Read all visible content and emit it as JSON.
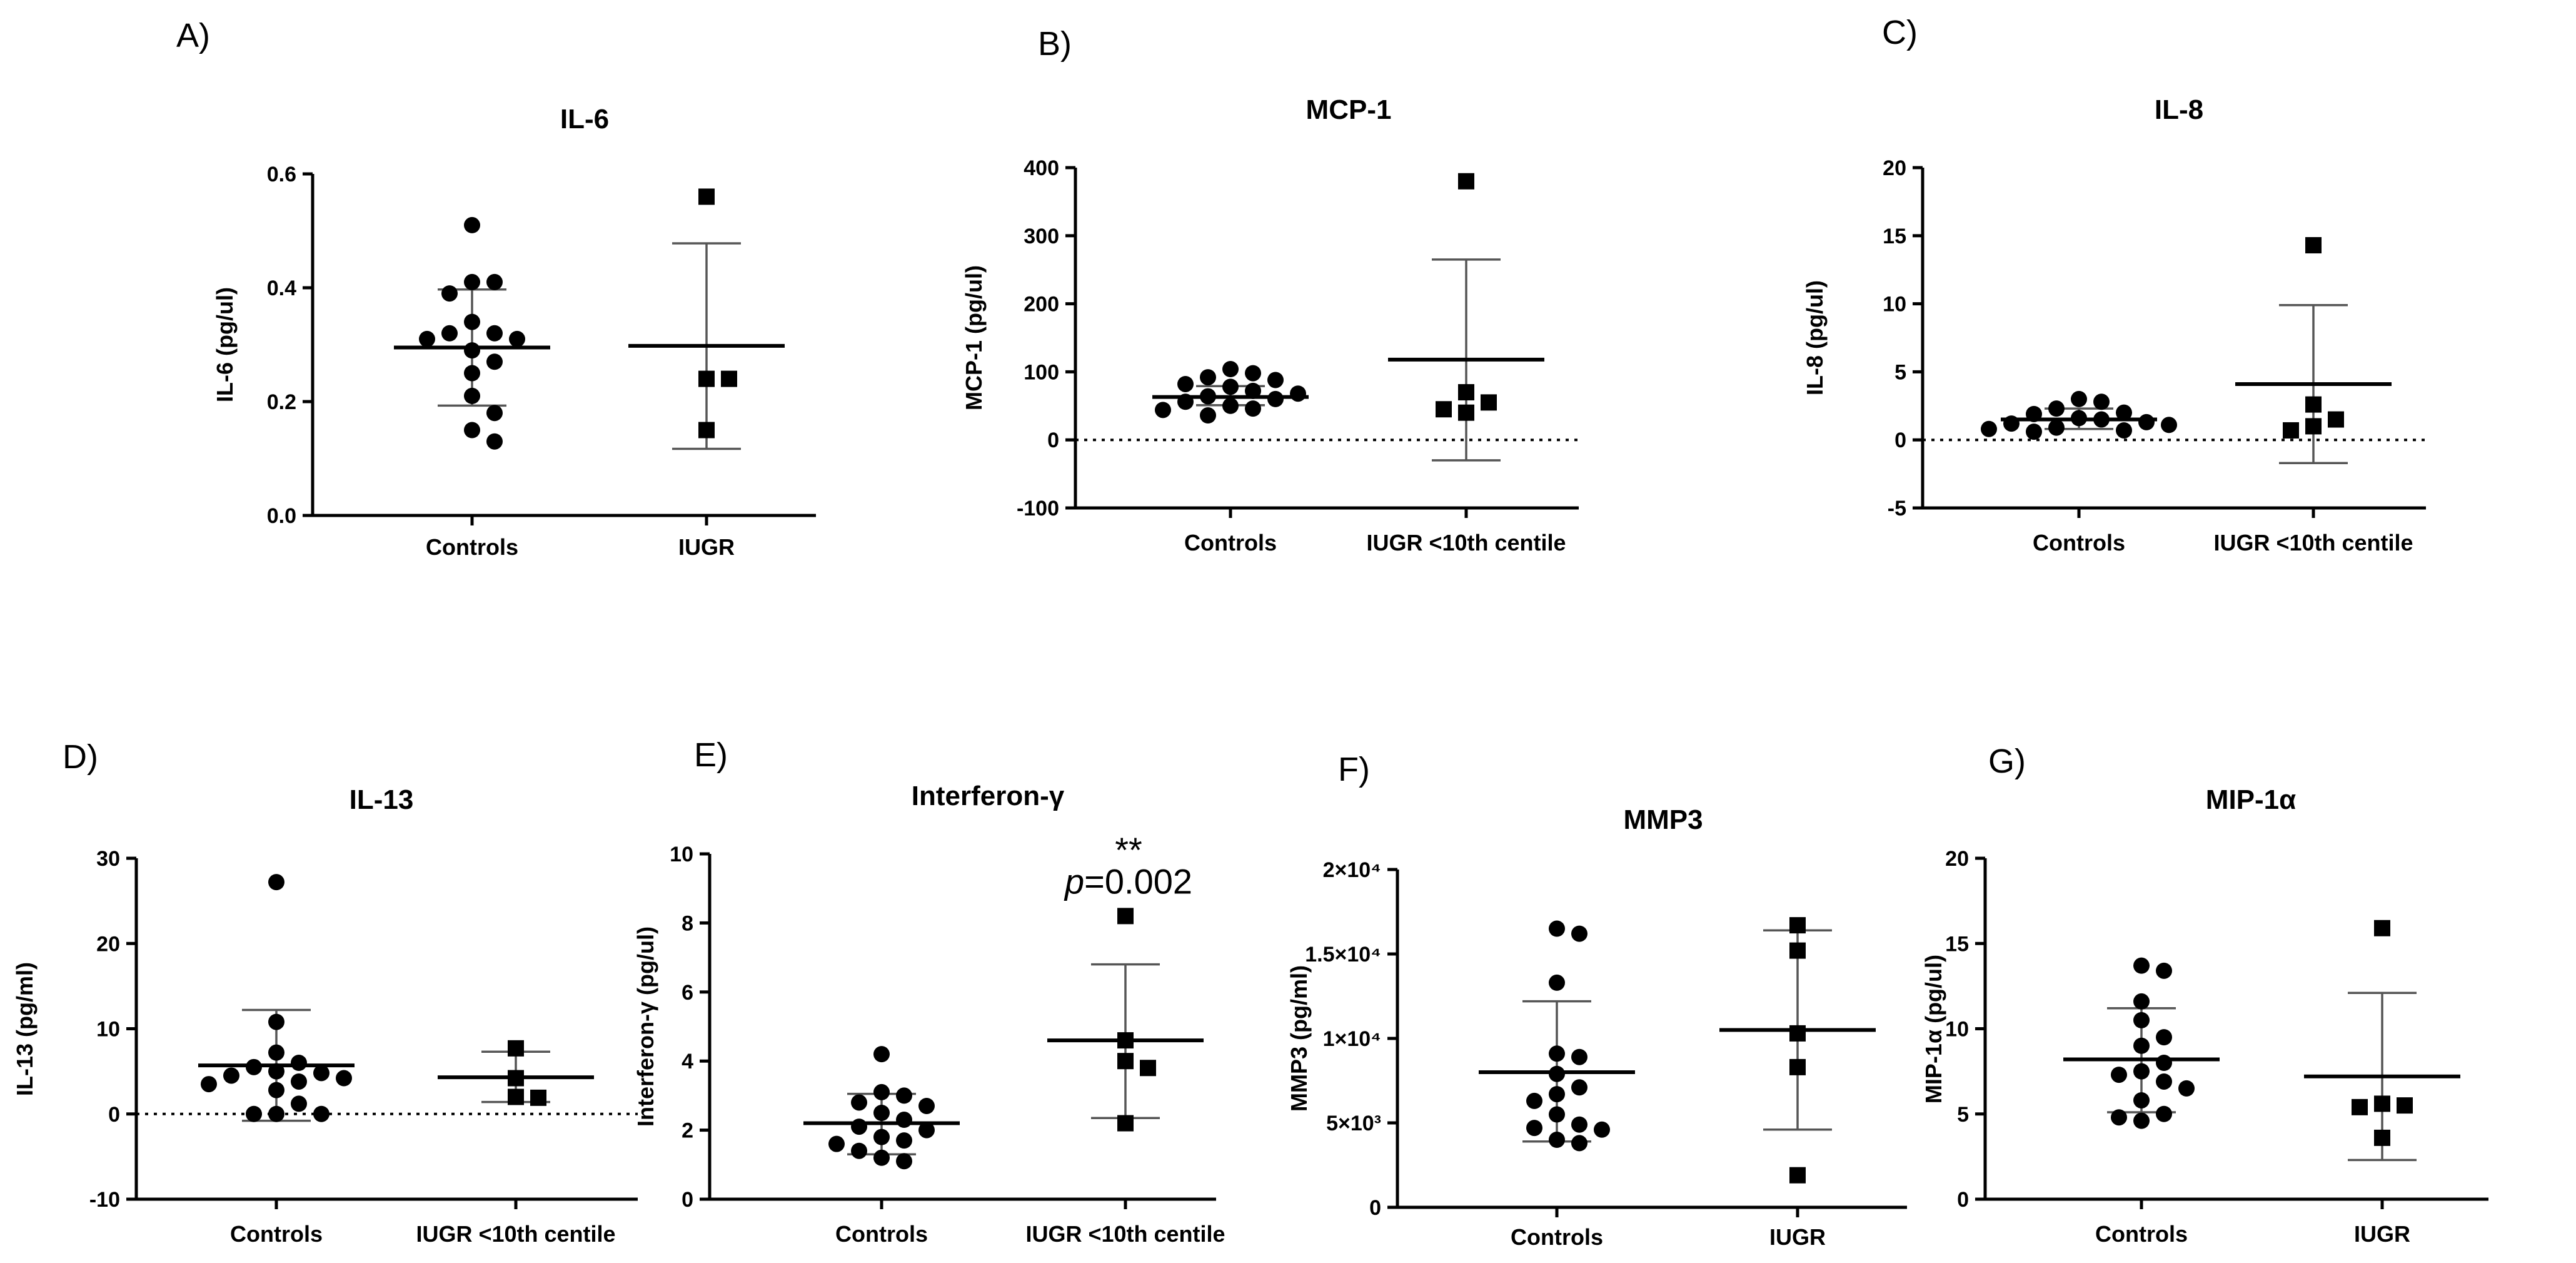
{
  "chart_data": [
    {
      "panel": "A)",
      "type": "scatter",
      "title": "IL-6",
      "xlabel": "",
      "ylabel": "IL-6 (pg/ul)",
      "ylim": [
        0,
        0.6
      ],
      "yticks": [
        0.0,
        0.2,
        0.4,
        0.6
      ],
      "ytick_labels": [
        "0.0",
        "0.2",
        "0.4",
        "0.6"
      ],
      "zero_line": false,
      "categories": [
        "Controls",
        "IUGR"
      ],
      "series": [
        {
          "name": "Controls",
          "marker": "circle",
          "mean": 0.295,
          "sd_low": 0.193,
          "sd_high": 0.397,
          "values": [
            0.51,
            0.41,
            0.41,
            0.39,
            0.34,
            0.32,
            0.32,
            0.31,
            0.31,
            0.29,
            0.27,
            0.25,
            0.21,
            0.18,
            0.15,
            0.13
          ]
        },
        {
          "name": "IUGR",
          "marker": "square",
          "mean": 0.298,
          "sd_low": 0.117,
          "sd_high": 0.478,
          "values": [
            0.56,
            0.24,
            0.24,
            0.15
          ]
        }
      ]
    },
    {
      "panel": "B)",
      "type": "scatter",
      "title": "MCP-1",
      "xlabel": "",
      "ylabel": "MCP-1 (pg/ul)",
      "ylim": [
        -100,
        400
      ],
      "yticks": [
        -100,
        0,
        100,
        200,
        300,
        400
      ],
      "ytick_labels": [
        "-100",
        "0",
        "100",
        "200",
        "300",
        "400"
      ],
      "zero_line": true,
      "categories": [
        "Controls",
        "IUGR <10th centile"
      ],
      "series": [
        {
          "name": "Controls",
          "marker": "circle",
          "mean": 63,
          "sd_low": 51,
          "sd_high": 79,
          "values": [
            104,
            98,
            92,
            88,
            82,
            78,
            72,
            68,
            64,
            60,
            56,
            50,
            46,
            44,
            36
          ]
        },
        {
          "name": "IUGR <10th centile",
          "marker": "square",
          "mean": 118,
          "sd_low": -30,
          "sd_high": 265,
          "values": [
            380,
            70,
            55,
            45,
            40
          ]
        }
      ]
    },
    {
      "panel": "C)",
      "type": "scatter",
      "title": "IL-8",
      "xlabel": "",
      "ylabel": "IL-8 (pg/ul)",
      "ylim": [
        -5,
        20
      ],
      "yticks": [
        -5,
        0,
        5,
        10,
        15,
        20
      ],
      "ytick_labels": [
        "-5",
        "0",
        "5",
        "10",
        "15",
        "20"
      ],
      "zero_line": true,
      "categories": [
        "Controls",
        "IUGR <10th centile"
      ],
      "series": [
        {
          "name": "Controls",
          "marker": "circle",
          "mean": 1.5,
          "sd_low": 0.8,
          "sd_high": 2.3,
          "values": [
            3.0,
            2.8,
            2.3,
            2.0,
            1.9,
            1.6,
            1.5,
            1.3,
            1.2,
            1.1,
            0.9,
            0.8,
            0.7,
            0.6
          ]
        },
        {
          "name": "IUGR <10th centile",
          "marker": "square",
          "mean": 4.1,
          "sd_low": -1.7,
          "sd_high": 9.9,
          "values": [
            14.3,
            2.6,
            1.5,
            1.0,
            0.7
          ]
        }
      ]
    },
    {
      "panel": "D)",
      "type": "scatter",
      "title": "IL-13",
      "xlabel": "",
      "ylabel": "IL-13 (pg/ml)",
      "ylim": [
        -10,
        30
      ],
      "yticks": [
        -10,
        0,
        10,
        20,
        30
      ],
      "ytick_labels": [
        "-10",
        "0",
        "10",
        "20",
        "30"
      ],
      "zero_line": true,
      "categories": [
        "Controls",
        "IUGR <10th centile"
      ],
      "series": [
        {
          "name": "Controls",
          "marker": "circle",
          "mean": 5.7,
          "sd_low": -0.8,
          "sd_high": 12.2,
          "values": [
            27.2,
            10.8,
            7.2,
            6.0,
            5.5,
            5.0,
            4.8,
            4.5,
            4.2,
            3.8,
            3.5,
            2.8,
            1.2,
            0.0,
            0.0,
            0.0
          ]
        },
        {
          "name": "IUGR <10th centile",
          "marker": "square",
          "mean": 4.3,
          "sd_low": 1.4,
          "sd_high": 7.3,
          "values": [
            7.7,
            4.2,
            2.0,
            1.9
          ]
        }
      ]
    },
    {
      "panel": "E)",
      "type": "scatter",
      "title": "Interferon-γ",
      "xlabel": "",
      "ylabel": "Interferon-γ (pg/ul)",
      "ylim": [
        0,
        10
      ],
      "yticks": [
        0,
        2,
        4,
        6,
        8,
        10
      ],
      "ytick_labels": [
        "0",
        "2",
        "4",
        "6",
        "8",
        "10"
      ],
      "zero_line": false,
      "categories": [
        "Controls",
        "IUGR <10th centile"
      ],
      "annotation": {
        "stars": "**",
        "p_symbol": "p",
        "p_value": "=0.002"
      },
      "series": [
        {
          "name": "Controls",
          "marker": "circle",
          "mean": 2.2,
          "sd_low": 1.3,
          "sd_high": 3.05,
          "values": [
            4.2,
            3.1,
            3.0,
            2.8,
            2.7,
            2.5,
            2.3,
            2.1,
            2.0,
            1.8,
            1.7,
            1.6,
            1.4,
            1.2,
            1.1
          ]
        },
        {
          "name": "IUGR <10th centile",
          "marker": "square",
          "mean": 4.6,
          "sd_low": 2.35,
          "sd_high": 6.8,
          "values": [
            8.2,
            4.6,
            4.0,
            3.8,
            2.2
          ]
        }
      ]
    },
    {
      "panel": "F)",
      "type": "scatter",
      "title": "MMP3",
      "xlabel": "",
      "ylabel": "MMP3 (pg/ml)",
      "ylim": [
        0,
        20000
      ],
      "yticks": [
        0,
        5000,
        10000,
        15000,
        20000
      ],
      "ytick_labels": [
        "0",
        "5×10³",
        "1×10⁴",
        "1.5×10⁴",
        "2×10⁴"
      ],
      "zero_line": false,
      "categories": [
        "Controls",
        "IUGR"
      ],
      "series": [
        {
          "name": "Controls",
          "marker": "circle",
          "mean": 8000,
          "sd_low": 3900,
          "sd_high": 12200,
          "values": [
            16500,
            16200,
            13300,
            9100,
            8900,
            7900,
            7100,
            6700,
            6300,
            5500,
            4900,
            4700,
            4600,
            4000,
            3800
          ]
        },
        {
          "name": "IUGR",
          "marker": "square",
          "mean": 10500,
          "sd_low": 4600,
          "sd_high": 16400,
          "values": [
            16700,
            15200,
            10300,
            8300,
            1900
          ]
        }
      ]
    },
    {
      "panel": "G)",
      "type": "scatter",
      "title": "MIP-1α",
      "xlabel": "",
      "ylabel": "MIP-1α (pg/ul)",
      "ylim": [
        0,
        20
      ],
      "yticks": [
        0,
        5,
        10,
        15,
        20
      ],
      "ytick_labels": [
        "0",
        "5",
        "10",
        "15",
        "20"
      ],
      "zero_line": false,
      "categories": [
        "Controls",
        "IUGR"
      ],
      "series": [
        {
          "name": "Controls",
          "marker": "circle",
          "mean": 8.2,
          "sd_low": 5.1,
          "sd_high": 11.2,
          "values": [
            13.7,
            13.4,
            11.6,
            10.5,
            9.5,
            9.0,
            8.0,
            7.5,
            7.3,
            6.9,
            6.5,
            5.8,
            5.0,
            4.8,
            4.6
          ]
        },
        {
          "name": "IUGR",
          "marker": "square",
          "mean": 7.2,
          "sd_low": 2.3,
          "sd_high": 12.1,
          "values": [
            15.9,
            5.6,
            5.5,
            5.4,
            3.6
          ]
        }
      ]
    }
  ]
}
